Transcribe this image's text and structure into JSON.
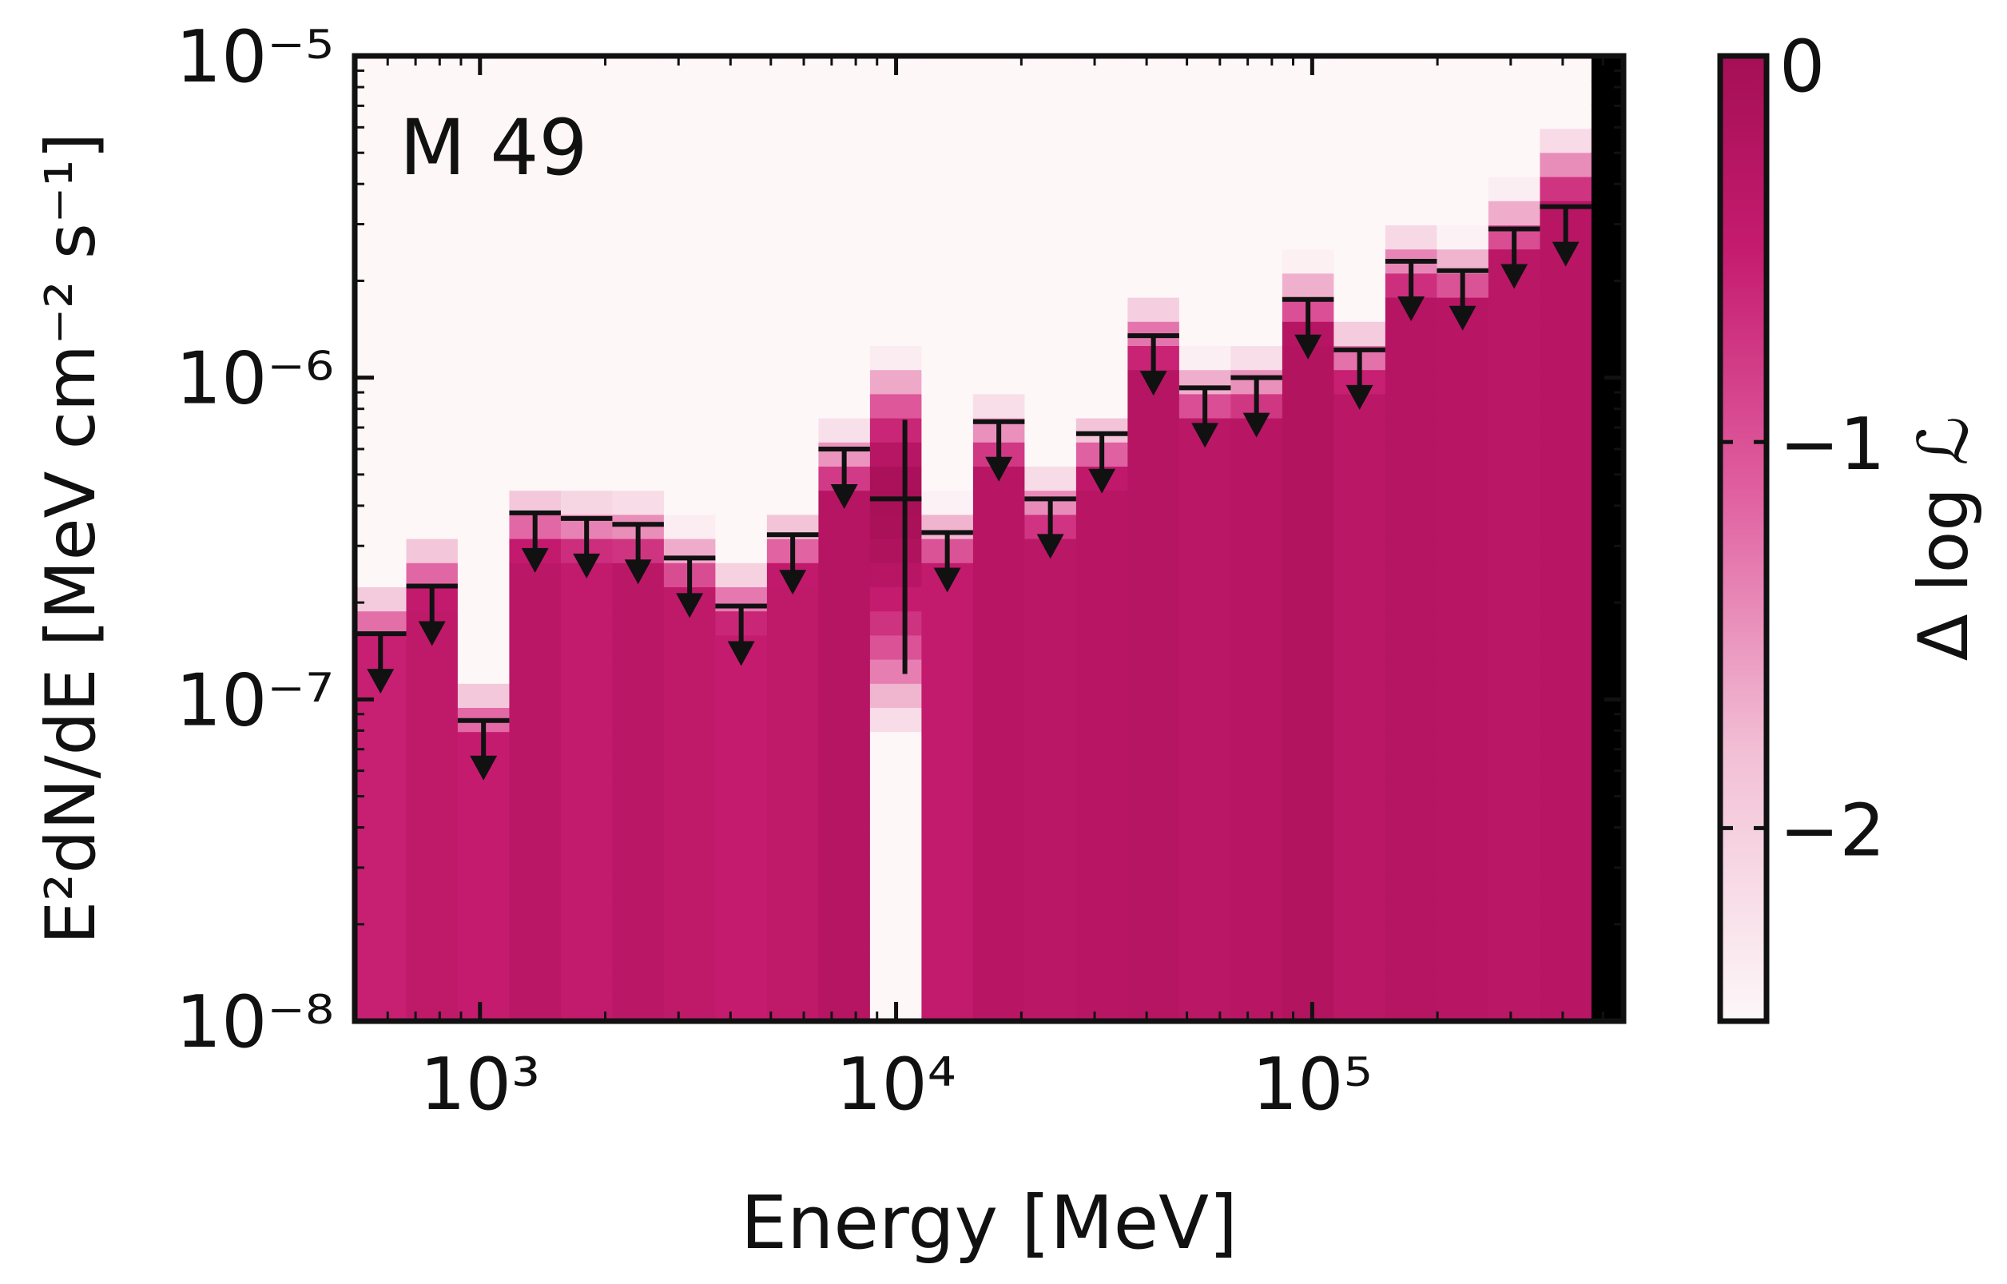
{
  "chart_data": {
    "type": "bar",
    "title": "",
    "annotation": "M 49",
    "xlabel": "Energy [MeV]",
    "ylabel": "E²dN/dE [MeV cm⁻² s⁻¹]",
    "xscale": "log",
    "yscale": "log",
    "xlim": [
      500,
      560000
    ],
    "ylim": [
      1e-08,
      1e-05
    ],
    "x_ticks": [
      {
        "value": 1000,
        "label": "10³"
      },
      {
        "value": 10000,
        "label": "10⁴"
      },
      {
        "value": 100000,
        "label": "10⁵"
      }
    ],
    "y_ticks": [
      {
        "value": 1e-08,
        "label": "10⁻⁸"
      },
      {
        "value": 1e-07,
        "label": "10⁻⁷"
      },
      {
        "value": 1e-06,
        "label": "10⁻⁶"
      },
      {
        "value": 1e-05,
        "label": "10⁻⁵"
      }
    ],
    "bin_edges": [
      500,
      665,
      884,
      1176,
      1564,
      2080,
      2766,
      3679,
      4893,
      6508,
      8655,
      11511,
      15310,
      20362,
      27081,
      36018,
      47904,
      63712,
      84737,
      112700,
      149890,
      199355,
      265143,
      352640,
      469008,
      560000
    ],
    "upper_limits": [
      1.6e-07,
      2.25e-07,
      8.6e-08,
      3.8e-07,
      3.65e-07,
      3.5e-07,
      2.75e-07,
      1.95e-07,
      3.25e-07,
      6e-07,
      null,
      3.3e-07,
      7.3e-07,
      4.2e-07,
      6.7e-07,
      1.35e-06,
      9.3e-07,
      1e-06,
      1.75e-06,
      1.22e-06,
      2.3e-06,
      2.15e-06,
      2.9e-06,
      3.4e-06
    ],
    "measurement": {
      "bin": 10,
      "energy": 10500,
      "value": 4.2e-07,
      "err_low": 1.2e-07,
      "err_high": 7.4e-07
    },
    "likelihood_bands": {
      "cap_values": [
        2.6e-07,
        3.6e-07,
        1.3e-07,
        5e-07,
        4.9e-07,
        4.7e-07,
        3.8e-07,
        3e-07,
        4.3e-07,
        7.6e-07,
        1.35e-06,
        4.5e-07,
        9.2e-07,
        5.6e-07,
        8.4e-07,
        1.9e-06,
        1.25e-06,
        1.3e-06,
        2.4e-06,
        1.65e-06,
        3.1e-06,
        2.9e-06,
        4.2e-06,
        6.2e-06
      ],
      "base_dlogL": [
        -0.55,
        -0.4,
        -0.5,
        -0.35,
        -0.45,
        -0.35,
        -0.4,
        -0.5,
        -0.4,
        -0.25,
        -1.4,
        -0.45,
        -0.3,
        -0.35,
        -0.3,
        -0.25,
        -0.35,
        -0.3,
        -0.2,
        -0.35,
        -0.25,
        -0.3,
        -0.35,
        -0.3
      ]
    },
    "colorbar": {
      "label": "Δ log ℒ",
      "range": [
        -2.5,
        0
      ],
      "ticks": [
        {
          "value": 0,
          "label": "0"
        },
        {
          "value": -1,
          "label": "−1"
        },
        {
          "value": -2,
          "label": "−2"
        }
      ],
      "colors": [
        "#fdf7f8",
        "#f2bfd5",
        "#e05fa0",
        "#c51b6f",
        "#a50f55"
      ]
    }
  }
}
